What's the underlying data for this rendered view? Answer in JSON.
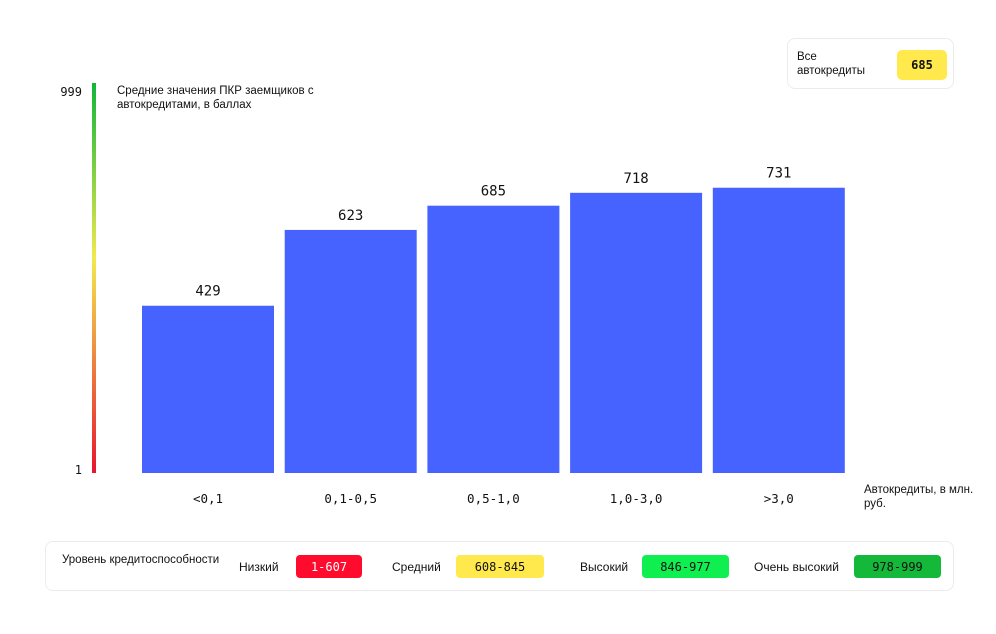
{
  "summary": {
    "label": "Все автокредиты",
    "value": "685",
    "color": "#ffe94d"
  },
  "chart_data": {
    "type": "bar",
    "title": "Средние значения ПКР заемщиков с автокредитами, в баллах",
    "xlabel": "Автокредиты, в млн. руб.",
    "categories": [
      "<0,1",
      "0,1-0,5",
      "0,5-1,0",
      "1,0-3,0",
      ">3,0"
    ],
    "values": [
      429,
      623,
      685,
      718,
      731
    ],
    "ylim": [
      1,
      999
    ],
    "yticks": [
      "999",
      "1"
    ],
    "bar_color": "#4763ff",
    "scale_gradient": [
      "#e8152f",
      "#f2e94d",
      "#0fb63b"
    ],
    "grid": false
  },
  "legend": {
    "title": "Уровень кредитоспособности",
    "levels": [
      {
        "name": "Низкий",
        "range": "1-607",
        "color": "#ff0b2e",
        "text_color": "#ffffff"
      },
      {
        "name": "Средний",
        "range": "608-845",
        "color": "#ffe94d",
        "text_color": "#111111"
      },
      {
        "name": "Высокий",
        "range": "846-977",
        "color": "#0ff050",
        "text_color": "#111111"
      },
      {
        "name": "Очень высокий",
        "range": "978-999",
        "color": "#14b93a",
        "text_color": "#111111"
      }
    ]
  }
}
